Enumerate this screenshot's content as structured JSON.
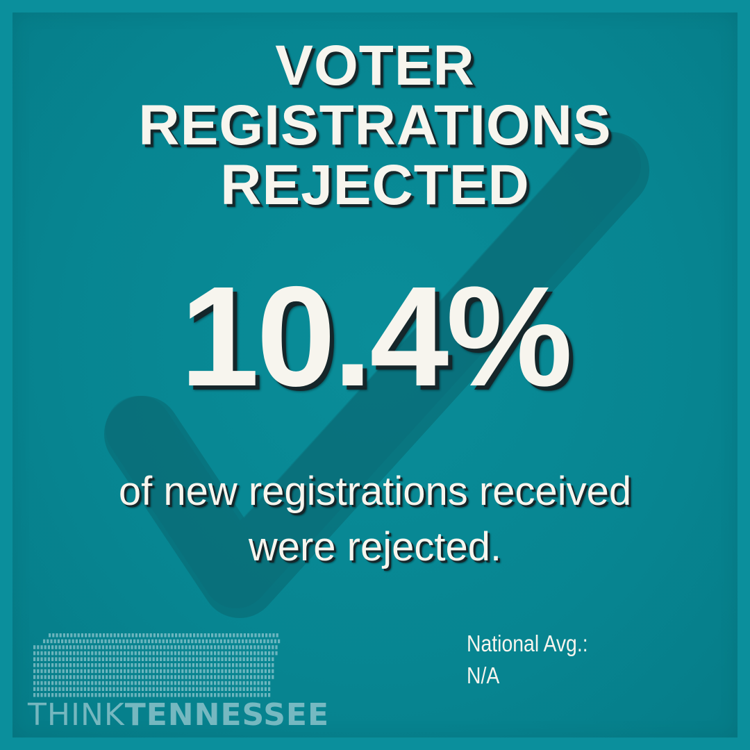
{
  "headline": {
    "line1": "VOTER",
    "line2": "REGISTRATIONS",
    "line3": "REJECTED"
  },
  "stat": {
    "value": "10.4%",
    "caption_line1": "of new registrations received",
    "caption_line2": "were rejected."
  },
  "national_average": {
    "label": "National Avg.:",
    "value": "N/A"
  },
  "logo": {
    "word1": "THINK",
    "word2": "TENNESSEE"
  },
  "colors": {
    "background": "#0b8f9c",
    "panel": "#078591",
    "checkmark": "#0a6670",
    "text": "#f7f5ee",
    "text_shadow": "#15262a"
  },
  "icons": {
    "background_mark": "checkmark-icon",
    "brand_mark": "tennessee-map-grid-icon"
  }
}
